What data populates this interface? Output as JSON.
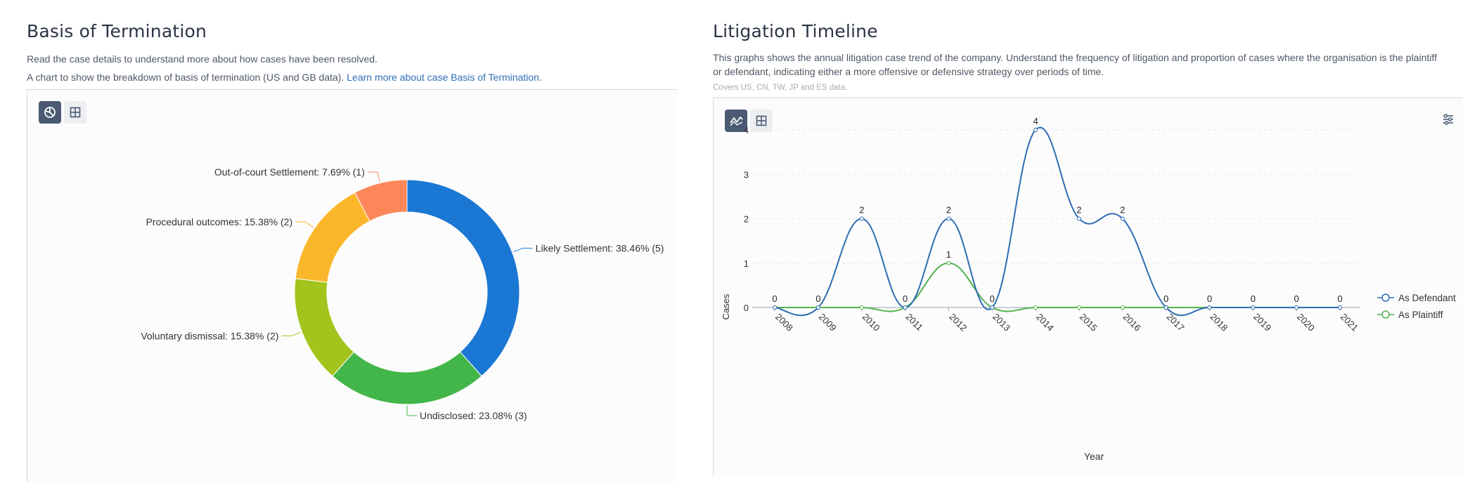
{
  "left": {
    "title": "Basis of Termination",
    "desc1": "Read the case details to understand more about how cases have been resolved.",
    "desc2": "A chart to show the breakdown of basis of termination (US and GB data).",
    "link": "Learn more about case Basis of Termination"
  },
  "right": {
    "title": "Litigation Timeline",
    "desc": "This graphs shows the annual litigation case trend of the company. Understand the frequency of litigation and proportion of cases where the organisation is the plaintiff or defendant, indicating either a more offensive or defensive strategy over periods of time.",
    "note": "Covers US, CN, TW, JP and ES data."
  },
  "icons": {
    "pie_view": "pie-chart-icon",
    "table_view": "table-grid-icon",
    "line_view": "line-chart-icon",
    "settings": "settings-icon"
  },
  "chart_data": [
    {
      "type": "pie",
      "donut": true,
      "slices": [
        {
          "label": "Likely Settlement",
          "percent": "38.46%",
          "count": "(5)",
          "value": 5,
          "color": "#1a77d4"
        },
        {
          "label": "Undisclosed",
          "percent": "23.08%",
          "count": "(3)",
          "value": 3,
          "color": "#43b649"
        },
        {
          "label": "Voluntary dismissal",
          "percent": "15.38%",
          "count": "(2)",
          "value": 2,
          "color": "#a3c41c"
        },
        {
          "label": "Procedural outcomes",
          "percent": "15.38%",
          "count": "(2)",
          "value": 2,
          "color": "#fbb72c"
        },
        {
          "label": "Out-of-court Settlement",
          "percent": "7.69%",
          "count": "(1)",
          "value": 1,
          "color": "#fd8759"
        }
      ]
    },
    {
      "type": "line",
      "smooth": true,
      "x": [
        "2008",
        "2009",
        "2010",
        "2011",
        "2012",
        "2013",
        "2014",
        "2015",
        "2016",
        "2017",
        "2018",
        "2019",
        "2020",
        "2021"
      ],
      "xlabel": "Year",
      "ylabel": "Cases",
      "ylim": [
        0,
        4
      ],
      "yticks": [
        "0",
        "1",
        "2",
        "3",
        "4"
      ],
      "grid": true,
      "legend_position": "right",
      "series": [
        {
          "name": "As Defendant",
          "color": "#2e6db3",
          "values": [
            0,
            0,
            2,
            0,
            2,
            0,
            4,
            2,
            2,
            0,
            0,
            0,
            0,
            0
          ]
        },
        {
          "name": "As Plaintiff",
          "color": "#52b34d",
          "values": [
            0,
            0,
            0,
            0,
            1,
            0,
            0,
            0,
            0,
            0,
            0,
            0,
            0,
            0
          ]
        }
      ]
    }
  ]
}
